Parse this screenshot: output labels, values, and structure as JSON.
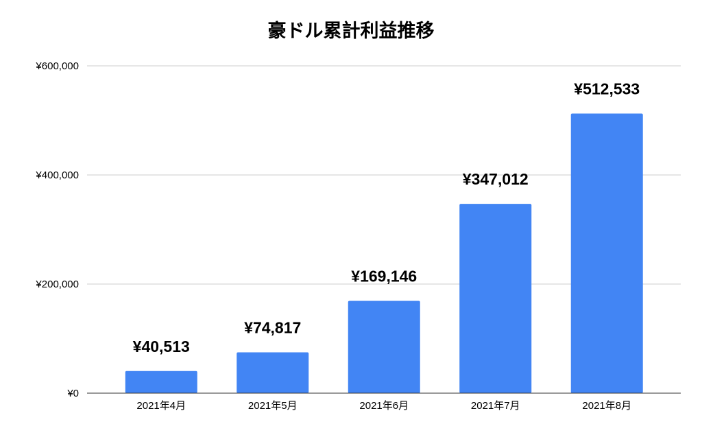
{
  "chart_data": {
    "type": "bar",
    "title": "豪ドル累計利益推移",
    "categories": [
      "2021年4月",
      "2021年5月",
      "2021年6月",
      "2021年7月",
      "2021年8月"
    ],
    "values": [
      40513,
      74817,
      169146,
      347012,
      512533
    ],
    "value_labels": [
      "¥40,513",
      "¥74,817",
      "¥169,146",
      "¥347,012",
      "¥512,533"
    ],
    "color": "#4285f4",
    "ylim": [
      0,
      600000
    ],
    "yticks": [
      {
        "value": 0,
        "label": "¥0"
      },
      {
        "value": 200000,
        "label": "¥200,000"
      },
      {
        "value": 400000,
        "label": "¥400,000"
      },
      {
        "value": 600000,
        "label": "¥600,000"
      }
    ],
    "grid": true
  }
}
